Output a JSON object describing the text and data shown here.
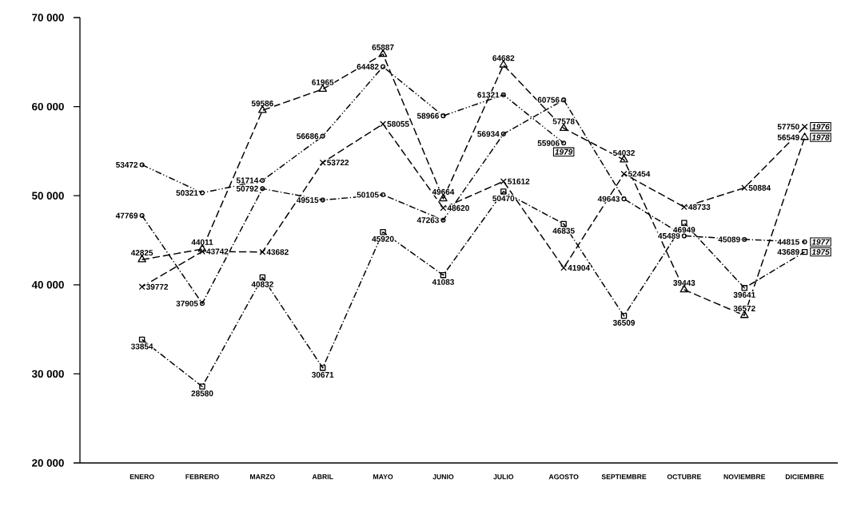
{
  "chart_data": {
    "type": "line",
    "categories": [
      "ENERO",
      "FEBRERO",
      "MARZO",
      "ABRIL",
      "MAYO",
      "JUNIO",
      "JULIO",
      "AGOSTO",
      "SEPTIEMBRE",
      "OCTUBRE",
      "NOVIEMBRE",
      "DICIEMBRE"
    ],
    "ylim": [
      20000,
      70000
    ],
    "yticks": [
      {
        "value": 20000,
        "label": "20 000"
      },
      {
        "value": 30000,
        "label": "30 000"
      },
      {
        "value": 40000,
        "label": "40 000"
      },
      {
        "value": 50000,
        "label": "50 000"
      },
      {
        "value": 60000,
        "label": "60 000"
      },
      {
        "value": 70000,
        "label": "70 000"
      }
    ],
    "grid": false,
    "data_labels": true,
    "series": [
      {
        "name": "1979",
        "color": "#000000",
        "marker": "circle",
        "line_style": "dashdotdotted",
        "values": [
          53472,
          50321,
          51714,
          56686,
          64482,
          58966,
          61321,
          55906,
          null,
          null,
          null,
          null
        ]
      },
      {
        "name": "1978",
        "color": "#000000",
        "marker": "triangle",
        "line_style": "dashed",
        "values": [
          42825,
          44011,
          59586,
          61965,
          65887,
          49664,
          64682,
          57578,
          54032,
          39443,
          36572,
          56549
        ]
      },
      {
        "name": "1976",
        "color": "#000000",
        "marker": "cross",
        "line_style": "dashed",
        "values": [
          39772,
          43742,
          43682,
          53722,
          58055,
          48620,
          51612,
          41904,
          52454,
          48733,
          50884,
          57750
        ]
      },
      {
        "name": "1977",
        "color": "#000000",
        "marker": "circle",
        "line_style": "dashdotted",
        "values": [
          47769,
          37905,
          50792,
          49515,
          50105,
          47263,
          56934,
          60756,
          49643,
          45489,
          45089,
          44815
        ]
      },
      {
        "name": "1975",
        "color": "#000000",
        "marker": "square",
        "line_style": "dashdotted",
        "values": [
          33854,
          28580,
          40832,
          30671,
          45920,
          41083,
          50470,
          46835,
          36509,
          46949,
          39641,
          43689
        ]
      }
    ]
  }
}
